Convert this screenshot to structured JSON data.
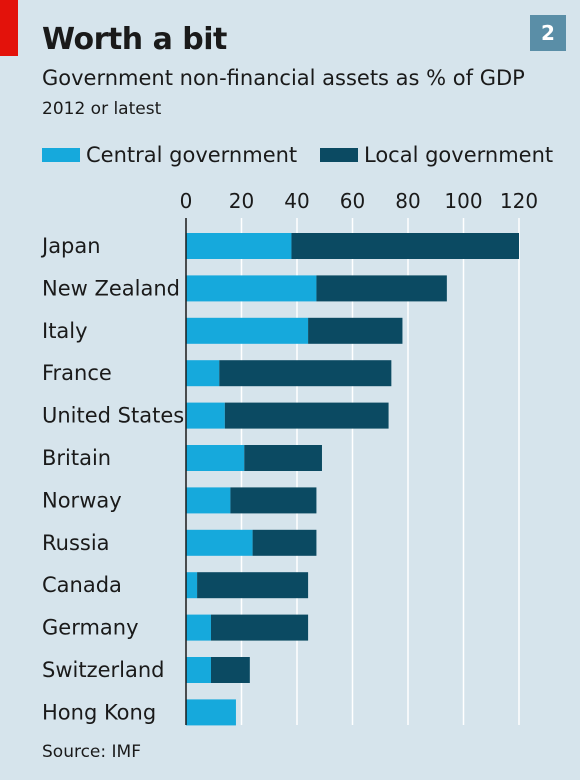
{
  "header": {
    "title": "Worth a bit",
    "subtitle": "Government non-financial assets as % of GDP",
    "note": "2012 or latest",
    "chart_number": "2"
  },
  "legend": {
    "central_label": "Central government",
    "local_label": "Local government"
  },
  "colors": {
    "central": "#16a9dc",
    "local": "#0b4a62",
    "background": "#d6e4ec",
    "gridline": "#ffffff",
    "accent_red": "#e3120b"
  },
  "footer": {
    "source": "Source: IMF"
  },
  "chart_data": {
    "type": "bar",
    "orientation": "horizontal",
    "stacked": true,
    "title": "Worth a bit",
    "subtitle": "Government non-financial assets as % of GDP",
    "categories": [
      "Japan",
      "New Zealand",
      "Italy",
      "France",
      "United States",
      "Britain",
      "Norway",
      "Russia",
      "Canada",
      "Germany",
      "Switzerland",
      "Hong Kong"
    ],
    "series": [
      {
        "name": "Central government",
        "values": [
          38,
          47,
          44,
          12,
          14,
          21,
          16,
          24,
          4,
          9,
          9,
          18
        ]
      },
      {
        "name": "Local government",
        "values": [
          82,
          47,
          34,
          62,
          59,
          28,
          31,
          23,
          40,
          35,
          14,
          0
        ]
      }
    ],
    "xlim": [
      0,
      120
    ],
    "xticks": [
      0,
      20,
      40,
      60,
      80,
      100,
      120
    ],
    "grid": true,
    "legend_position": "top"
  }
}
